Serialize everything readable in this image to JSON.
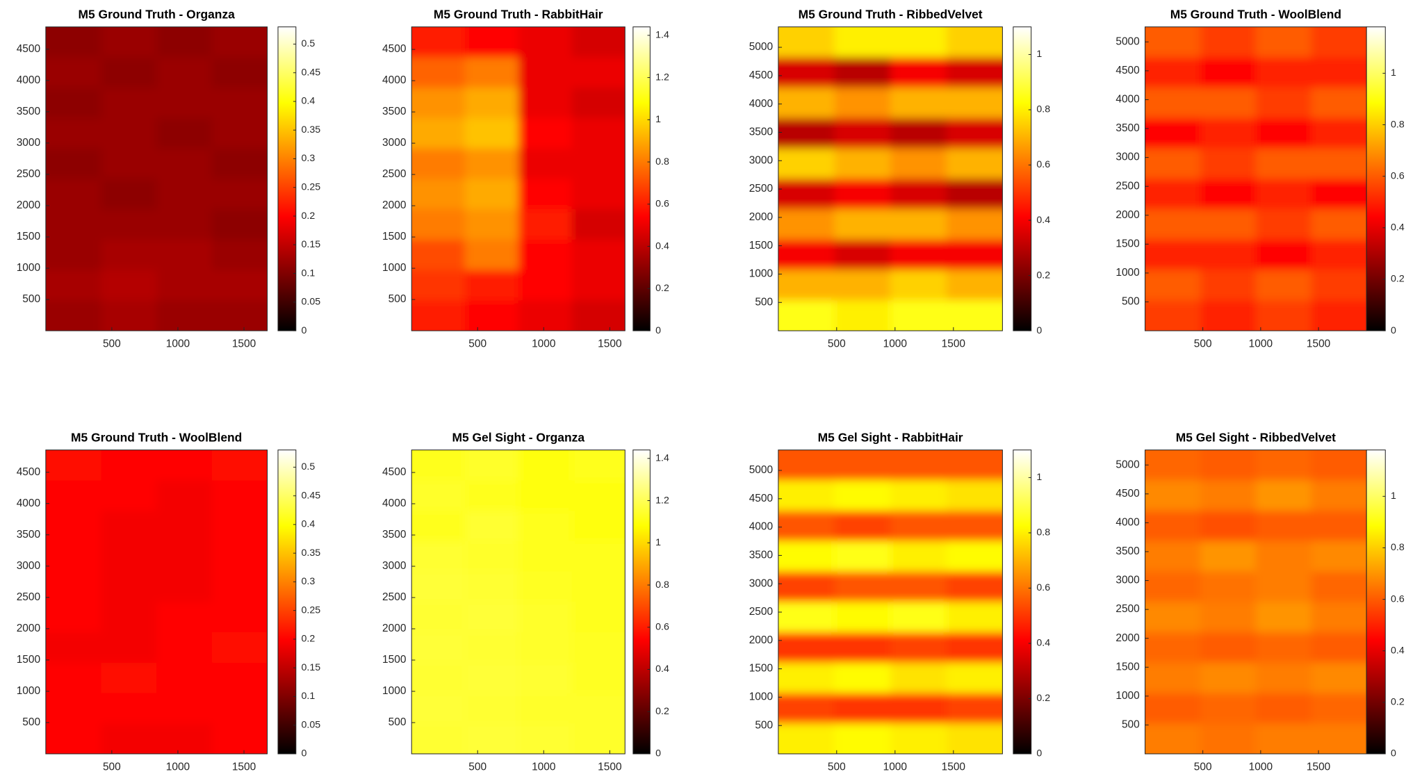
{
  "chart_data": [
    {
      "type": "heatmap",
      "title": "M5 Ground Truth - Organza",
      "colormap": "hot",
      "xlim": [
        0.5,
        1676
      ],
      "xticks": [
        500,
        1000,
        1500
      ],
      "ylim": [
        0.5,
        4856
      ],
      "yticks": [
        500,
        1000,
        1500,
        2000,
        2500,
        3000,
        3500,
        4000,
        4500
      ],
      "clim": [
        0,
        0.53
      ],
      "cticks": [
        0,
        0.05,
        0.1,
        0.15,
        0.2,
        0.25,
        0.3,
        0.35,
        0.4,
        0.45,
        0.5
      ],
      "values": [
        [
          0.11,
          0.12,
          0.11,
          0.12
        ],
        [
          0.12,
          0.11,
          0.12,
          0.11
        ],
        [
          0.11,
          0.12,
          0.12,
          0.12
        ],
        [
          0.12,
          0.12,
          0.11,
          0.12
        ],
        [
          0.11,
          0.12,
          0.12,
          0.11
        ],
        [
          0.12,
          0.11,
          0.12,
          0.12
        ],
        [
          0.12,
          0.12,
          0.12,
          0.11
        ],
        [
          0.12,
          0.13,
          0.13,
          0.12
        ],
        [
          0.13,
          0.14,
          0.13,
          0.13
        ],
        [
          0.12,
          0.13,
          0.12,
          0.12
        ]
      ]
    },
    {
      "type": "heatmap",
      "title": "M5 Ground Truth - RabbitHair",
      "colormap": "hot",
      "xlim": [
        0.5,
        1615
      ],
      "xticks": [
        500,
        1000,
        1500
      ],
      "ylim": [
        0.5,
        4860
      ],
      "yticks": [
        500,
        1000,
        1500,
        2000,
        2500,
        3000,
        3500,
        4000,
        4500
      ],
      "clim": [
        0,
        1.44
      ],
      "cticks": [
        0,
        0.2,
        0.4,
        0.6,
        0.8,
        1,
        1.2,
        1.4
      ],
      "values": [
        [
          0.6,
          0.55,
          0.5,
          0.45
        ],
        [
          0.75,
          0.8,
          0.5,
          0.5
        ],
        [
          0.85,
          0.9,
          0.5,
          0.45
        ],
        [
          0.9,
          0.95,
          0.55,
          0.5
        ],
        [
          0.8,
          0.85,
          0.5,
          0.5
        ],
        [
          0.85,
          0.9,
          0.55,
          0.5
        ],
        [
          0.8,
          0.85,
          0.6,
          0.45
        ],
        [
          0.7,
          0.8,
          0.55,
          0.5
        ],
        [
          0.65,
          0.6,
          0.55,
          0.5
        ],
        [
          0.6,
          0.55,
          0.5,
          0.45
        ]
      ]
    },
    {
      "type": "heatmap",
      "title": "M5 Ground Truth - RibbedVelvet",
      "colormap": "hot",
      "xlim": [
        0.5,
        1920
      ],
      "xticks": [
        500,
        1000,
        1500
      ],
      "ylim": [
        0.5,
        5360
      ],
      "yticks": [
        500,
        1000,
        1500,
        2000,
        2500,
        3000,
        3500,
        4000,
        4500,
        5000
      ],
      "clim": [
        0,
        1.1
      ],
      "cticks": [
        0,
        0.2,
        0.4,
        0.6,
        0.8,
        1
      ],
      "values": [
        [
          0.75,
          0.8,
          0.8,
          0.75
        ],
        [
          0.35,
          0.3,
          0.4,
          0.35
        ],
        [
          0.7,
          0.65,
          0.7,
          0.7
        ],
        [
          0.3,
          0.35,
          0.3,
          0.35
        ],
        [
          0.75,
          0.7,
          0.65,
          0.7
        ],
        [
          0.35,
          0.4,
          0.35,
          0.3
        ],
        [
          0.65,
          0.7,
          0.7,
          0.65
        ],
        [
          0.4,
          0.35,
          0.4,
          0.4
        ],
        [
          0.7,
          0.7,
          0.75,
          0.7
        ],
        [
          0.85,
          0.8,
          0.85,
          0.85
        ]
      ]
    },
    {
      "type": "heatmap",
      "title": "M5 Ground Truth - WoolBlend",
      "colormap": "hot",
      "xlim": [
        0.5,
        1915
      ],
      "xticks": [
        500,
        1000,
        1500
      ],
      "ylim": [
        0.5,
        5260
      ],
      "yticks": [
        500,
        1000,
        1500,
        2000,
        2500,
        3000,
        3500,
        4000,
        4500,
        5000
      ],
      "clim": [
        0,
        1.18
      ],
      "cticks": [
        0,
        0.2,
        0.4,
        0.6,
        0.8,
        1
      ],
      "values": [
        [
          0.6,
          0.55,
          0.6,
          0.55
        ],
        [
          0.5,
          0.45,
          0.5,
          0.5
        ],
        [
          0.6,
          0.6,
          0.55,
          0.6
        ],
        [
          0.45,
          0.5,
          0.45,
          0.5
        ],
        [
          0.6,
          0.55,
          0.6,
          0.6
        ],
        [
          0.5,
          0.45,
          0.5,
          0.45
        ],
        [
          0.6,
          0.6,
          0.55,
          0.6
        ],
        [
          0.5,
          0.5,
          0.45,
          0.5
        ],
        [
          0.6,
          0.55,
          0.6,
          0.55
        ],
        [
          0.55,
          0.5,
          0.55,
          0.5
        ]
      ]
    },
    {
      "type": "heatmap",
      "title": "M5 Ground Truth - WoolBlend",
      "colormap": "hot",
      "xlim": [
        0.5,
        1676
      ],
      "xticks": [
        500,
        1000,
        1500
      ],
      "ylim": [
        0.5,
        4856
      ],
      "yticks": [
        500,
        1000,
        1500,
        2000,
        2500,
        3000,
        3500,
        4000,
        4500
      ],
      "clim": [
        0,
        0.53
      ],
      "cticks": [
        0,
        0.05,
        0.1,
        0.15,
        0.2,
        0.25,
        0.3,
        0.35,
        0.4,
        0.45,
        0.5
      ],
      "values": [
        [
          0.21,
          0.2,
          0.2,
          0.21
        ],
        [
          0.2,
          0.2,
          0.19,
          0.2
        ],
        [
          0.2,
          0.19,
          0.19,
          0.2
        ],
        [
          0.2,
          0.19,
          0.19,
          0.2
        ],
        [
          0.2,
          0.19,
          0.19,
          0.2
        ],
        [
          0.2,
          0.19,
          0.2,
          0.2
        ],
        [
          0.19,
          0.19,
          0.2,
          0.21
        ],
        [
          0.2,
          0.21,
          0.2,
          0.2
        ],
        [
          0.2,
          0.2,
          0.2,
          0.2
        ],
        [
          0.2,
          0.19,
          0.19,
          0.2
        ]
      ]
    },
    {
      "type": "heatmap",
      "title": "M5 Gel Sight - Organza",
      "colormap": "hot",
      "xlim": [
        0.5,
        1615
      ],
      "xticks": [
        500,
        1000,
        1500
      ],
      "ylim": [
        0.5,
        4860
      ],
      "yticks": [
        500,
        1000,
        1500,
        2000,
        2500,
        3000,
        3500,
        4000,
        4500
      ],
      "clim": [
        0,
        1.44
      ],
      "cticks": [
        0,
        0.2,
        0.4,
        0.6,
        0.8,
        1,
        1.2,
        1.4
      ],
      "values": [
        [
          1.12,
          1.14,
          1.1,
          1.12
        ],
        [
          1.14,
          1.12,
          1.1,
          1.1
        ],
        [
          1.12,
          1.15,
          1.12,
          1.1
        ],
        [
          1.15,
          1.14,
          1.12,
          1.12
        ],
        [
          1.16,
          1.15,
          1.13,
          1.12
        ],
        [
          1.15,
          1.16,
          1.14,
          1.12
        ],
        [
          1.16,
          1.15,
          1.14,
          1.13
        ],
        [
          1.15,
          1.16,
          1.15,
          1.13
        ],
        [
          1.16,
          1.15,
          1.14,
          1.14
        ],
        [
          1.15,
          1.16,
          1.15,
          1.14
        ]
      ]
    },
    {
      "type": "heatmap",
      "title": "M5 Gel Sight - RabbitHair",
      "colormap": "hot",
      "xlim": [
        0.5,
        1920
      ],
      "xticks": [
        500,
        1000,
        1500
      ],
      "ylim": [
        0.5,
        5360
      ],
      "yticks": [
        500,
        1000,
        1500,
        2000,
        2500,
        3000,
        3500,
        4000,
        4500,
        5000
      ],
      "clim": [
        0,
        1.1
      ],
      "cticks": [
        0,
        0.2,
        0.4,
        0.6,
        0.8,
        1
      ],
      "values": [
        [
          0.55,
          0.55,
          0.55,
          0.55
        ],
        [
          0.8,
          0.82,
          0.8,
          0.78
        ],
        [
          0.55,
          0.52,
          0.55,
          0.55
        ],
        [
          0.82,
          0.85,
          0.8,
          0.82
        ],
        [
          0.52,
          0.55,
          0.55,
          0.52
        ],
        [
          0.85,
          0.82,
          0.85,
          0.8
        ],
        [
          0.5,
          0.5,
          0.52,
          0.5
        ],
        [
          0.8,
          0.82,
          0.78,
          0.8
        ],
        [
          0.52,
          0.5,
          0.5,
          0.52
        ],
        [
          0.8,
          0.82,
          0.8,
          0.78
        ]
      ]
    },
    {
      "type": "heatmap",
      "title": "M5 Gel Sight - RibbedVelvet",
      "colormap": "hot",
      "xlim": [
        0.5,
        1915
      ],
      "xticks": [
        500,
        1000,
        1500
      ],
      "ylim": [
        0.5,
        5260
      ],
      "yticks": [
        500,
        1000,
        1500,
        2000,
        2500,
        3000,
        3500,
        4000,
        4500,
        5000
      ],
      "clim": [
        0,
        1.18
      ],
      "cticks": [
        0,
        0.2,
        0.4,
        0.6,
        0.8,
        1
      ],
      "values": [
        [
          0.62,
          0.6,
          0.62,
          0.6
        ],
        [
          0.68,
          0.66,
          0.7,
          0.66
        ],
        [
          0.6,
          0.58,
          0.6,
          0.6
        ],
        [
          0.66,
          0.7,
          0.66,
          0.68
        ],
        [
          0.62,
          0.64,
          0.66,
          0.62
        ],
        [
          0.68,
          0.66,
          0.7,
          0.66
        ],
        [
          0.62,
          0.6,
          0.62,
          0.6
        ],
        [
          0.66,
          0.68,
          0.66,
          0.68
        ],
        [
          0.6,
          0.62,
          0.6,
          0.62
        ],
        [
          0.66,
          0.64,
          0.66,
          0.66
        ]
      ]
    }
  ]
}
